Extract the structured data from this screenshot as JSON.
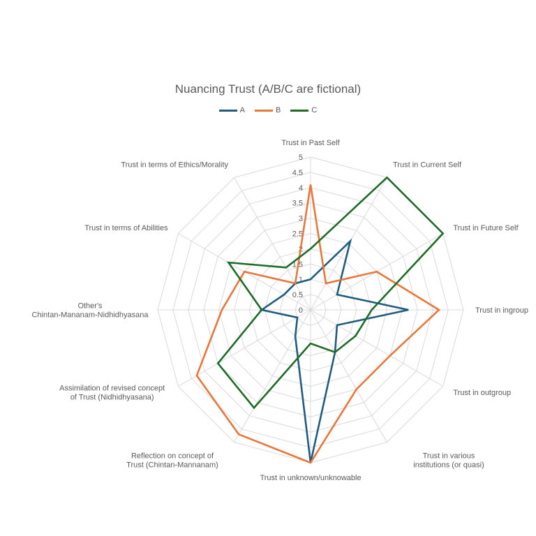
{
  "chart_data": {
    "type": "radar",
    "title": "Nuancing Trust (A/B/C are fictional)",
    "categories": [
      "Trust in Past Self",
      "Trust in Current Self",
      "Trust in Future Self",
      "Trust in ingroup",
      "Trust in outgroup",
      "Trust in various institutions (or quasi)",
      "Trust in unknown/unknowable",
      "Reflection on concept of Trust (Chintan-Mannanam)",
      "Assimilation of revised concept of Trust (Nidhidhyasana)",
      "Other's Chintan-Mananam-Nidhidhyasana",
      "Trust in terms of Abilities",
      "Trust in terms of Ethics/Morality"
    ],
    "series": [
      {
        "name": "A",
        "color": "#1f5c7f",
        "values": [
          1,
          2.6,
          1,
          3.2,
          1,
          1.6,
          5,
          1,
          0.5,
          1.6,
          1,
          1
        ]
      },
      {
        "name": "B",
        "color": "#e8773a",
        "values": [
          4.1,
          1,
          2.5,
          4.2,
          3,
          3,
          5,
          4.7,
          4.3,
          2.9,
          2.5,
          1
        ]
      },
      {
        "name": "C",
        "color": "#1e6b28",
        "values": [
          2,
          5,
          5,
          2,
          1.7,
          1.6,
          1.1,
          3.7,
          3.5,
          1.6,
          3.1,
          1.6
        ]
      }
    ],
    "rlim": [
      0,
      5
    ],
    "ticks": [
      "0",
      "0.5",
      "1",
      "1.5",
      "2",
      "2.5",
      "3",
      "3.5",
      "4",
      "4.5",
      "5"
    ],
    "tick_values": [
      0,
      0.5,
      1,
      1.5,
      2,
      2.5,
      3,
      3.5,
      4,
      4.5,
      5
    ],
    "legend_position": "top",
    "grid": true
  }
}
